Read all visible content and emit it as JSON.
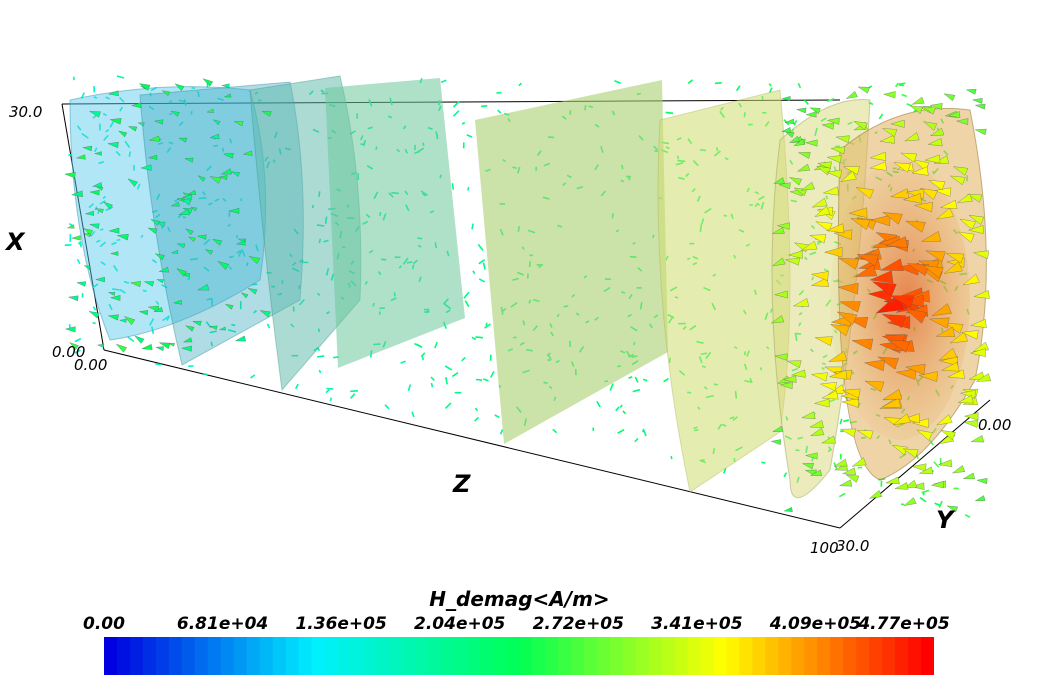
{
  "axes": {
    "x_label": "X",
    "y_label": "Y",
    "z_label": "Z",
    "x_min": "0.00",
    "x_max": "30.0",
    "z_min": "0.00",
    "z_max": "100",
    "y_min": "0.00",
    "y_max": "30.0"
  },
  "colorbar": {
    "title": "H_demag<A/m>",
    "ticks": [
      "0.00",
      "6.81e+04",
      "1.36e+05",
      "2.04e+05",
      "2.72e+05",
      "3.41e+05",
      "4.09e+05",
      "4.77e+05"
    ],
    "min": 0,
    "max": 477000,
    "colormap": [
      "#0000e0",
      "#00f0ff",
      "#00ff55",
      "#ffff00",
      "#ff0000"
    ]
  },
  "isosurfaces": {
    "count": 8,
    "colors": [
      "#4fc8e8",
      "#3aa8c0",
      "#4fb8a8",
      "#5fc8a0",
      "#a8d070",
      "#c8dc70",
      "#d8d878",
      "#e0b060"
    ]
  }
}
